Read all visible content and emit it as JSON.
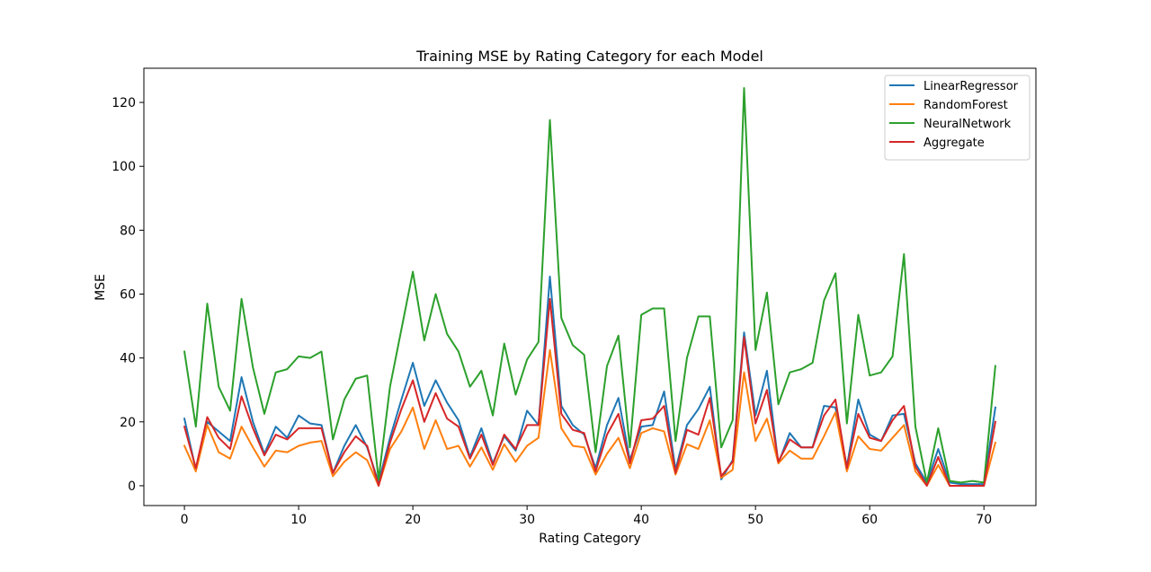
{
  "chart_data": {
    "type": "line",
    "title": "Training MSE by Rating Category for each Model",
    "xlabel": "Rating Category",
    "ylabel": "MSE",
    "xlim": [
      -3.55,
      74.55
    ],
    "ylim": [
      -6.2,
      130.7
    ],
    "x_ticks": [
      0,
      10,
      20,
      30,
      40,
      50,
      60,
      70
    ],
    "y_ticks": [
      0,
      20,
      40,
      60,
      80,
      100,
      120
    ],
    "grid": false,
    "legend_position": "top-right",
    "x": [
      0,
      1,
      2,
      3,
      4,
      5,
      6,
      7,
      8,
      9,
      10,
      11,
      12,
      13,
      14,
      15,
      16,
      17,
      18,
      19,
      20,
      21,
      22,
      23,
      24,
      25,
      26,
      27,
      28,
      29,
      30,
      31,
      32,
      33,
      34,
      35,
      36,
      37,
      38,
      39,
      40,
      41,
      42,
      43,
      44,
      45,
      46,
      47,
      48,
      49,
      50,
      51,
      52,
      53,
      54,
      55,
      56,
      57,
      58,
      59,
      60,
      61,
      62,
      63,
      64,
      65,
      66,
      67,
      68,
      69,
      70,
      71
    ],
    "series": [
      {
        "name": "LinearRegressor",
        "color": "#1f77b4",
        "values": [
          21,
          5,
          20,
          17,
          14,
          34,
          20,
          10,
          18.5,
          15,
          22,
          19.5,
          19,
          4,
          12.5,
          19,
          12,
          1,
          15,
          27,
          38.5,
          25,
          33,
          26,
          20.5,
          9,
          18,
          7,
          15.5,
          11,
          23.5,
          19,
          65.5,
          25,
          19,
          16,
          5.5,
          19,
          27.5,
          8,
          18.5,
          19,
          29.5,
          5,
          19,
          24,
          31,
          2,
          8,
          48,
          22,
          36,
          7,
          16.5,
          12,
          12,
          25,
          24.5,
          6,
          27,
          16,
          14,
          22,
          22.5,
          7,
          1,
          11.5,
          1,
          0.5,
          0.5,
          0.5,
          24.5
        ]
      },
      {
        "name": "RandomForest",
        "color": "#ff7f0e",
        "values": [
          12.5,
          4.5,
          19,
          10.5,
          8.5,
          18.5,
          12,
          6,
          11,
          10.5,
          12.5,
          13.5,
          14,
          3,
          7.5,
          10.5,
          8,
          0,
          11.5,
          17,
          24.5,
          11.5,
          20.5,
          11.5,
          12.5,
          6,
          12,
          5,
          13,
          7.5,
          12.5,
          15,
          42.5,
          18,
          12.5,
          12,
          3.5,
          10,
          15,
          5.5,
          16.5,
          18,
          17,
          3.5,
          13,
          11.5,
          20.5,
          2.5,
          5,
          35.5,
          14,
          21,
          7,
          11,
          8.5,
          8.5,
          15.5,
          23,
          4.5,
          15.5,
          11.5,
          11,
          15,
          19,
          4.5,
          0,
          6.5,
          0,
          0,
          0,
          0,
          13.5
        ]
      },
      {
        "name": "NeuralNetwork",
        "color": "#2ca02c",
        "values": [
          42,
          18.5,
          57,
          31,
          23.5,
          58.5,
          37,
          22.5,
          35.5,
          36.5,
          40.5,
          40,
          42,
          14.5,
          27,
          33.5,
          34.5,
          2,
          31,
          49,
          67,
          45.5,
          60,
          47.5,
          42,
          31,
          36,
          22,
          44.5,
          28.5,
          39.5,
          45,
          114.5,
          52.5,
          44,
          41,
          10.5,
          37.5,
          47,
          12,
          53.5,
          55.5,
          55.5,
          14,
          40,
          53,
          53,
          12,
          20.5,
          124.5,
          42.5,
          60.5,
          25.5,
          35.5,
          36.5,
          38.5,
          58,
          66.5,
          19.5,
          53.5,
          34.5,
          35.5,
          40.5,
          72.5,
          18.5,
          1,
          18,
          1.5,
          1,
          1.5,
          1,
          37.5
        ]
      },
      {
        "name": "Aggregate",
        "color": "#d62728",
        "values": [
          18.5,
          5.5,
          21.5,
          15,
          11.5,
          28,
          18,
          9.5,
          16,
          14.5,
          18,
          18,
          18,
          4,
          10.5,
          15.5,
          12.5,
          0,
          13.5,
          24,
          33,
          20,
          29,
          21,
          18.5,
          8.5,
          16,
          6.5,
          16,
          11.5,
          19,
          19,
          58.5,
          22.5,
          17.5,
          16.5,
          4.5,
          16,
          22.5,
          7,
          20.5,
          21,
          25,
          4,
          17.5,
          16,
          27.5,
          3,
          7.5,
          46.5,
          19.5,
          30,
          7.5,
          14.5,
          12,
          12,
          22,
          27,
          5.5,
          22.5,
          15,
          14,
          20.5,
          25,
          6,
          0,
          9,
          0,
          0,
          0,
          0,
          20
        ]
      }
    ]
  }
}
